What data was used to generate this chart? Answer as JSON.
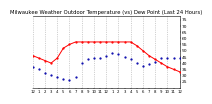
{
  "title": "Milwaukee Weather Outdoor Temperature (vs) Dew Point (Last 24 Hours)",
  "title_fontsize": 3.8,
  "background_color": "#ffffff",
  "temp_color": "#ff0000",
  "dew_color": "#0000aa",
  "ylim": [
    20,
    78
  ],
  "ytick_fontsize": 3.2,
  "xtick_fontsize": 2.8,
  "grid_color": "#aaaaaa",
  "hours": [
    0,
    1,
    2,
    3,
    4,
    5,
    6,
    7,
    8,
    9,
    10,
    11,
    12,
    13,
    14,
    15,
    16,
    17,
    18,
    19,
    20,
    21,
    22,
    23,
    24
  ],
  "temp": [
    46,
    44,
    42,
    40,
    44,
    52,
    55,
    57,
    57,
    57,
    57,
    57,
    57,
    57,
    57,
    57,
    57,
    54,
    50,
    46,
    43,
    40,
    37,
    35,
    33
  ],
  "dew": [
    37,
    35,
    32,
    30,
    29,
    27,
    26,
    29,
    40,
    43,
    44,
    44,
    46,
    48,
    47,
    45,
    43,
    40,
    38,
    39,
    41,
    44,
    44,
    44,
    44
  ],
  "xtick_labels": [
    "12",
    "1",
    "2",
    "3",
    "4",
    "5",
    "6",
    "7",
    "8",
    "9",
    "10",
    "11",
    "12",
    "1",
    "2",
    "3",
    "4",
    "5",
    "6",
    "7",
    "8",
    "9",
    "10",
    "11",
    "12"
  ],
  "ytick_vals": [
    75,
    70,
    65,
    60,
    55,
    50,
    45,
    40,
    35,
    30,
    25
  ],
  "ytick_labels": [
    "75",
    "70",
    "65",
    "60",
    "55",
    "50",
    "45",
    "40",
    "35",
    "30",
    "25"
  ]
}
